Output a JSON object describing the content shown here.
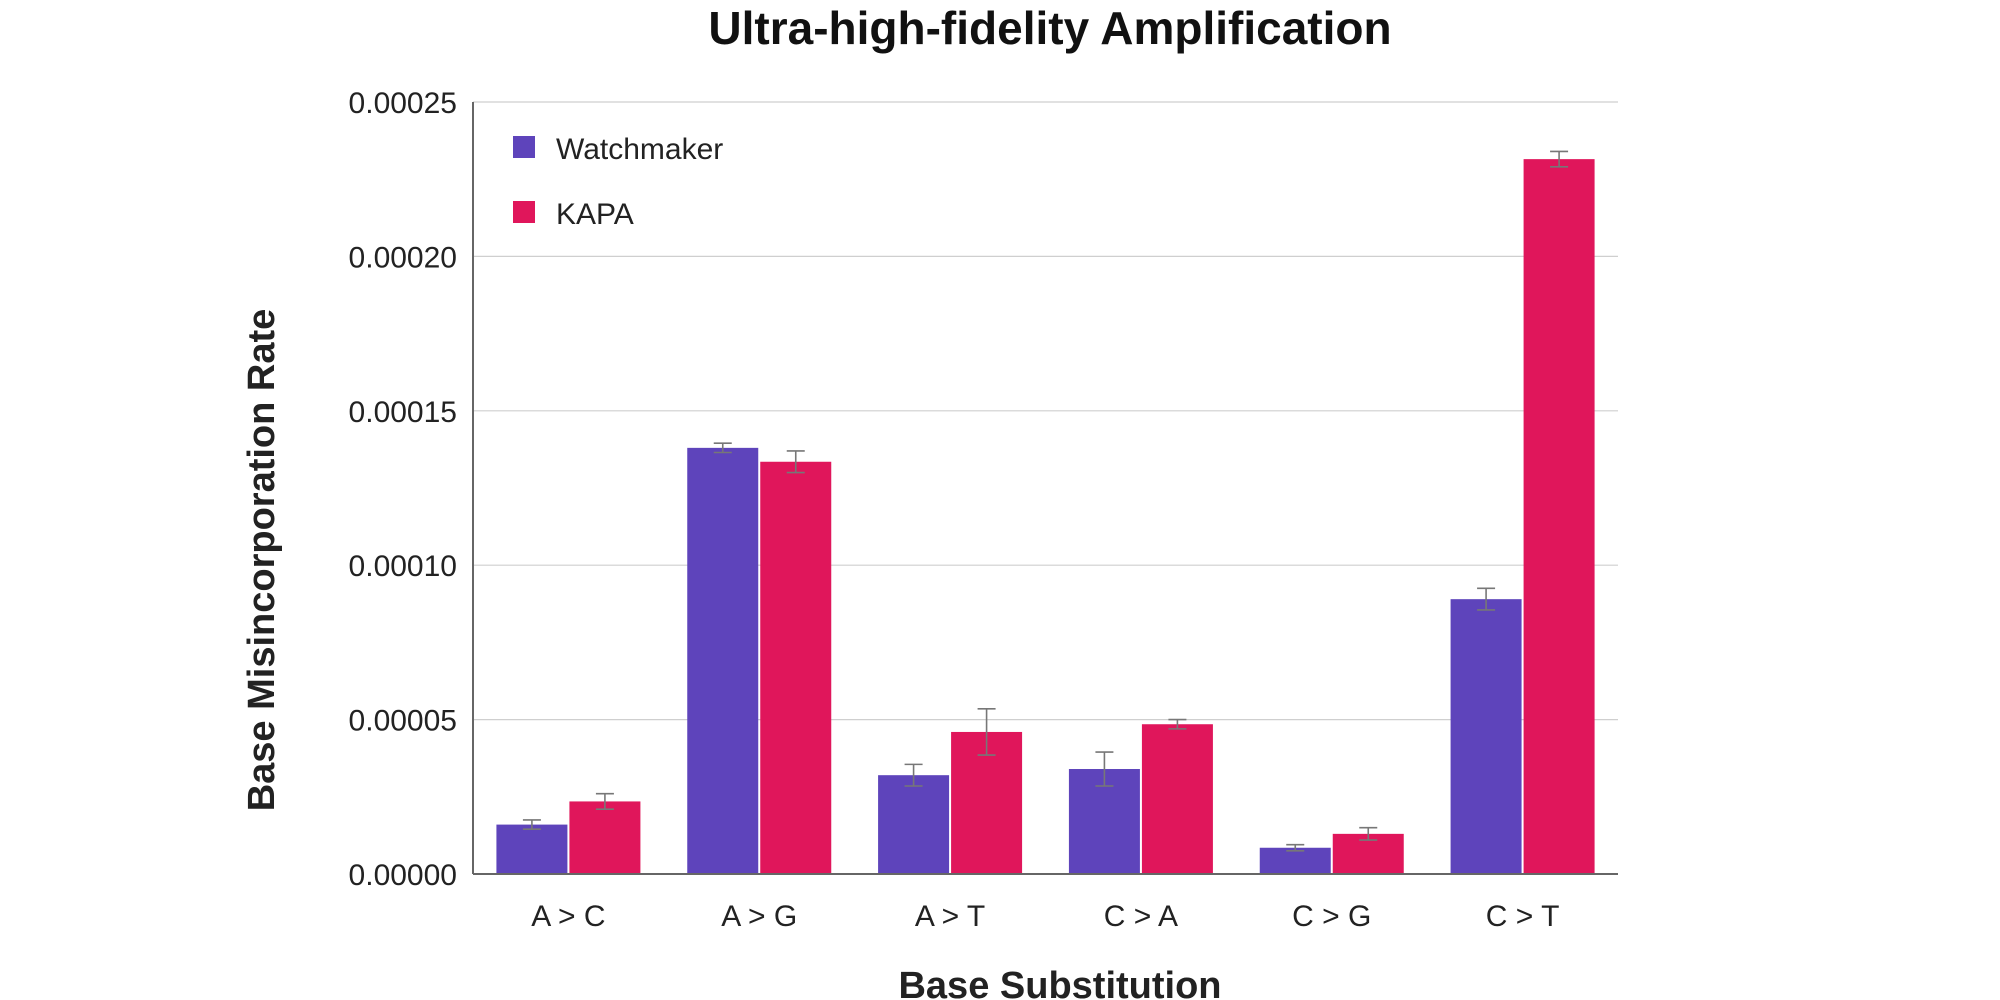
{
  "chart_data": {
    "type": "bar",
    "title": "Ultra-high-fidelity Amplification",
    "xlabel": "Base Substitution",
    "ylabel": "Base Misincorporation Rate",
    "categories": [
      "A > C",
      "A > G",
      "A > T",
      "C > A",
      "C > G",
      "C > T"
    ],
    "ylim": [
      0,
      0.00025
    ],
    "yticks": [
      "0.00000",
      "0.00005",
      "0.00010",
      "0.00015",
      "0.00020",
      "0.00025"
    ],
    "ytick_values": [
      0,
      5e-05,
      0.0001,
      0.00015,
      0.0002,
      0.00025
    ],
    "grid": true,
    "legend_position": "top-left",
    "series": [
      {
        "name": "Watchmaker",
        "color": "#5e44bb",
        "values": [
          1.6e-05,
          0.000138,
          3.2e-05,
          3.4e-05,
          8.5e-06,
          8.9e-05
        ],
        "errors": [
          1.5e-06,
          1.5e-06,
          3.5e-06,
          5.5e-06,
          1e-06,
          3.5e-06
        ]
      },
      {
        "name": "KAPA",
        "color": "#e0165b",
        "values": [
          2.35e-05,
          0.0001335,
          4.6e-05,
          4.85e-05,
          1.3e-05,
          0.0002315
        ],
        "errors": [
          2.5e-06,
          3.5e-06,
          7.5e-06,
          1.5e-06,
          2e-06,
          2.5e-06
        ]
      }
    ]
  }
}
